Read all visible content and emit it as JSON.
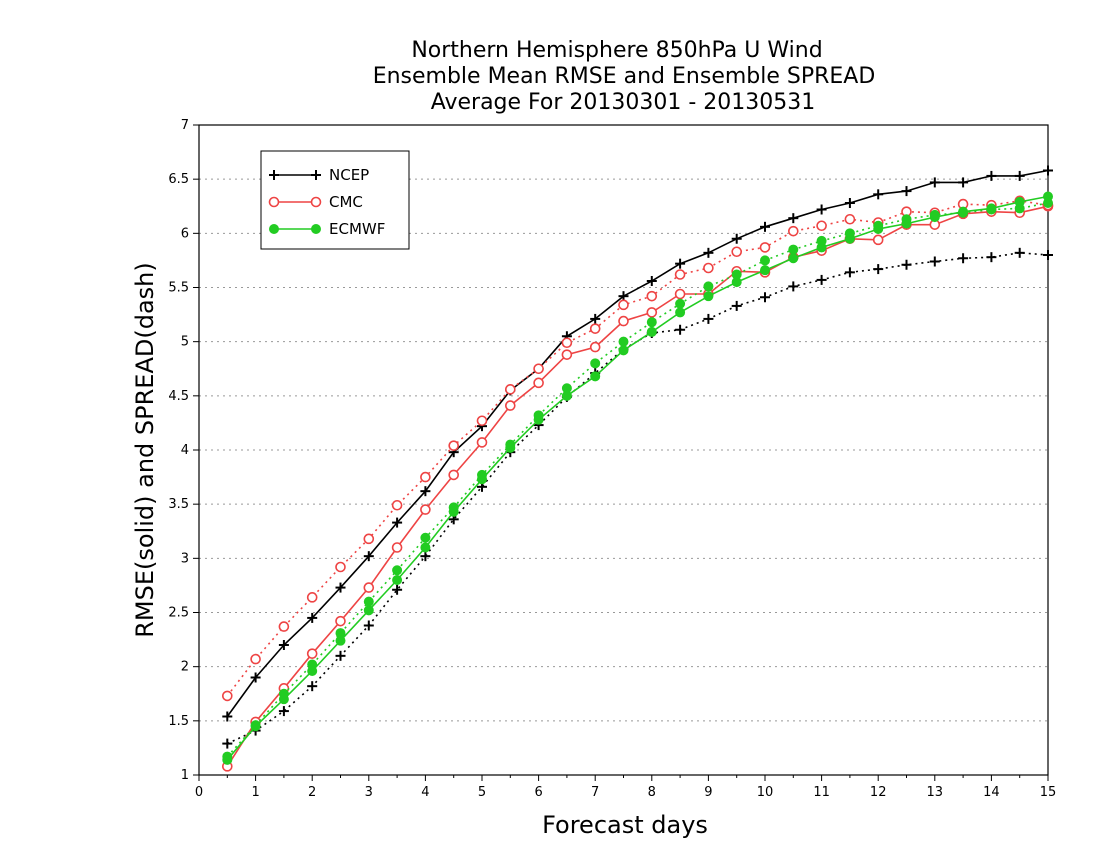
{
  "chart_data": {
    "type": "line",
    "title": [
      "Northern Hemisphere 850hPa U Wind",
      "Ensemble Mean RMSE and Ensemble SPREAD",
      "Average For 20130301 - 20130531"
    ],
    "xlabel": "Forecast days",
    "ylabel": "RMSE(solid) and SPREAD(dash)",
    "xlim": [
      0,
      15
    ],
    "ylim": [
      1,
      7
    ],
    "xticks": [
      "0",
      "1",
      "2",
      "3",
      "4",
      "5",
      "6",
      "7",
      "8",
      "9",
      "10",
      "11",
      "12",
      "13",
      "14",
      "15"
    ],
    "yticks": [
      "1",
      "1.5",
      "2",
      "2.5",
      "3",
      "3.5",
      "4",
      "4.5",
      "5",
      "5.5",
      "6",
      "6.5",
      "7"
    ],
    "grid": true,
    "legend_position": "top-left",
    "x": [
      0.5,
      1,
      1.5,
      2,
      2.5,
      3,
      3.5,
      4,
      4.5,
      5,
      5.5,
      6,
      6.5,
      7,
      7.5,
      8,
      8.5,
      9,
      9.5,
      10,
      10.5,
      11,
      11.5,
      12,
      12.5,
      13,
      13.5,
      14,
      14.5,
      15
    ],
    "series": [
      {
        "name": "NCEP",
        "color": "#000000",
        "marker": "plus",
        "rmse": [
          1.54,
          1.9,
          2.2,
          2.45,
          2.73,
          3.02,
          3.33,
          3.62,
          3.98,
          4.22,
          4.55,
          4.75,
          5.05,
          5.21,
          5.42,
          5.56,
          5.72,
          5.82,
          5.95,
          6.06,
          6.14,
          6.22,
          6.28,
          6.36,
          6.39,
          6.47,
          6.47,
          6.53,
          6.53,
          6.58
        ],
        "spread": [
          1.29,
          1.41,
          1.59,
          1.82,
          2.1,
          2.38,
          2.71,
          3.02,
          3.36,
          3.66,
          3.98,
          4.23,
          4.49,
          4.71,
          4.93,
          5.08,
          5.11,
          5.21,
          5.33,
          5.41,
          5.51,
          5.57,
          5.64,
          5.67,
          5.71,
          5.74,
          5.77,
          5.78,
          5.82,
          5.8
        ]
      },
      {
        "name": "CMC",
        "color": "#ee4444",
        "marker": "circle-open",
        "rmse": [
          1.08,
          1.49,
          1.8,
          2.12,
          2.42,
          2.73,
          3.1,
          3.45,
          3.77,
          4.07,
          4.41,
          4.62,
          4.88,
          4.95,
          5.19,
          5.27,
          5.44,
          5.44,
          5.65,
          5.64,
          5.78,
          5.84,
          5.95,
          5.94,
          6.08,
          6.08,
          6.18,
          6.2,
          6.19,
          6.25
        ],
        "spread": [
          1.73,
          2.07,
          2.37,
          2.64,
          2.92,
          3.18,
          3.49,
          3.75,
          4.04,
          4.27,
          4.56,
          4.75,
          4.99,
          5.12,
          5.34,
          5.42,
          5.62,
          5.68,
          5.83,
          5.87,
          6.02,
          6.07,
          6.13,
          6.1,
          6.2,
          6.19,
          6.27,
          6.26,
          6.3,
          6.26
        ]
      },
      {
        "name": "ECMWF",
        "color": "#22cc22",
        "marker": "circle-filled",
        "rmse": [
          1.14,
          1.45,
          1.7,
          1.96,
          2.24,
          2.52,
          2.8,
          3.1,
          3.43,
          3.73,
          4.02,
          4.28,
          4.5,
          4.68,
          4.92,
          5.09,
          5.27,
          5.42,
          5.55,
          5.66,
          5.77,
          5.87,
          5.95,
          6.04,
          6.09,
          6.15,
          6.2,
          6.23,
          6.29,
          6.34
        ],
        "spread": [
          1.17,
          1.46,
          1.75,
          2.02,
          2.31,
          2.6,
          2.89,
          3.19,
          3.47,
          3.77,
          4.05,
          4.32,
          4.57,
          4.8,
          5.0,
          5.18,
          5.35,
          5.51,
          5.62,
          5.75,
          5.85,
          5.93,
          6.0,
          6.07,
          6.13,
          6.17,
          6.19,
          6.22,
          6.23,
          6.28
        ]
      }
    ]
  }
}
